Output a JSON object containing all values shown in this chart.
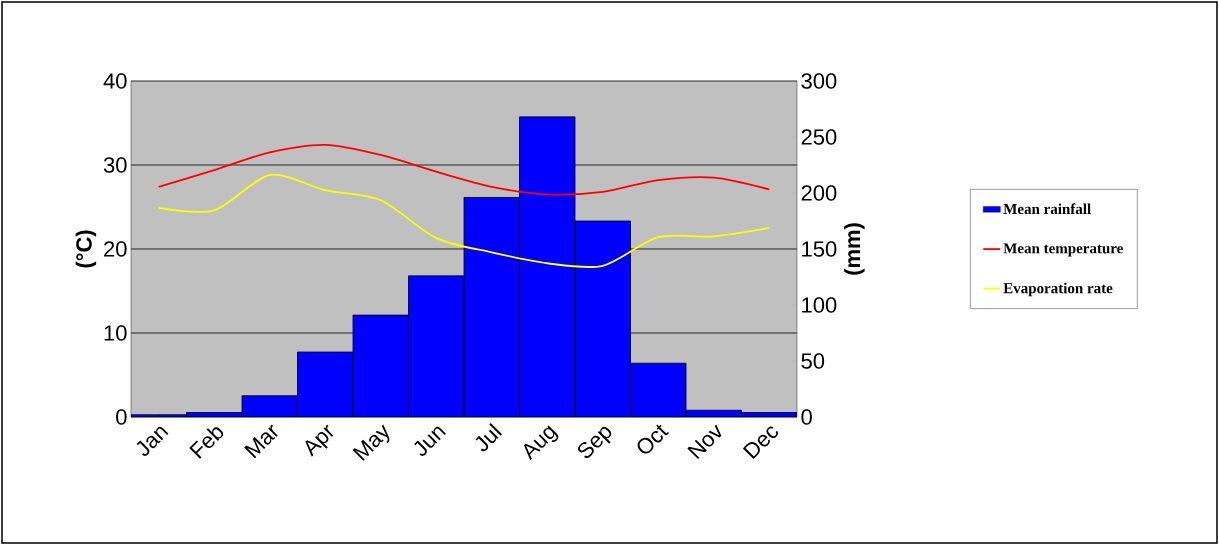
{
  "chart_data": {
    "type": "bar",
    "categories": [
      "Jan",
      "Feb",
      "Mar",
      "Apr",
      "May",
      "Jun",
      "Jul",
      "Aug",
      "Sep",
      "Oct",
      "Nov",
      "Dec"
    ],
    "ylabel": "(°C)",
    "y2label": "(mm)",
    "ylim": [
      0,
      40
    ],
    "yticks": [
      0,
      10,
      20,
      30,
      40
    ],
    "y2lim": [
      0,
      300
    ],
    "y2ticks": [
      0,
      50,
      100,
      150,
      200,
      250,
      300
    ],
    "grid": "y",
    "legend": "right",
    "series": [
      {
        "name": "Mean rainfall",
        "axis": "y2",
        "color": "#0000ff",
        "values": [
          2,
          4,
          19,
          58,
          91,
          126,
          196,
          268,
          175,
          48,
          6,
          4
        ]
      },
      {
        "name": "Mean temperature",
        "type": "line",
        "axis": "y",
        "color": "#ff0000",
        "values": [
          27.4,
          29.4,
          31.5,
          32.4,
          31.2,
          29.2,
          27.4,
          26.5,
          26.8,
          28.2,
          28.5,
          27.1
        ]
      },
      {
        "name": "Evaporation rate",
        "type": "line",
        "axis": "y",
        "color": "#ffff00",
        "values": [
          24.9,
          24.6,
          28.8,
          27.0,
          25.8,
          21.3,
          19.6,
          18.3,
          18.0,
          21.4,
          21.5,
          22.5
        ]
      }
    ]
  }
}
